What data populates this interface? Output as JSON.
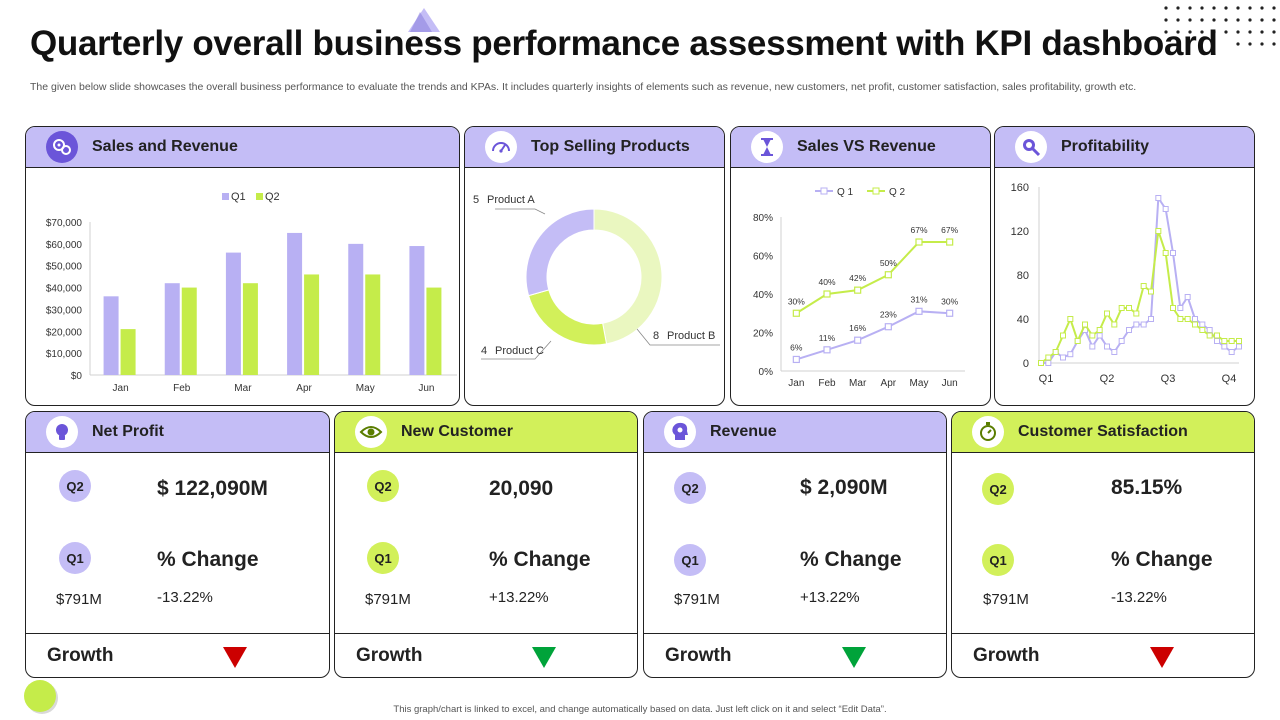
{
  "page": {
    "title": "Quarterly overall business performance assessment with KPI dashboard",
    "subtitle": "The given below slide showcases the overall business performance to evaluate the trends and KPAs.  It includes quarterly insights of elements such as revenue, new customers, net profit, customer satisfaction, sales profitability, growth etc.",
    "footer": "This graph/chart is linked to excel, and change automatically based on data. Just left click on it and select “Edit Data”."
  },
  "colors": {
    "purple": "#c4bdf6",
    "purple_series": "#b8b0f3",
    "green": "#d2f05a",
    "green_series": "#c5ec4a",
    "down": "#cc0000",
    "up": "#00a33a"
  },
  "panels": {
    "sales_revenue": {
      "title": "Sales and Revenue",
      "icon": "chart-gears-icon"
    },
    "top_selling": {
      "title": "Top Selling Products",
      "icon": "gauge-icon"
    },
    "sales_vs_revenue": {
      "title": "Sales VS Revenue",
      "icon": "hourglass-icon"
    },
    "profitability": {
      "title": "Profitability",
      "icon": "magnifier-icon"
    }
  },
  "kpis": [
    {
      "title": "Net Profit",
      "theme": "purple",
      "icon": "lightbulb-icon",
      "q2_label": "Q2",
      "q1_label": "Q1",
      "value": "$ 122,090M",
      "change_label": "% Change",
      "q1_value": "$791M",
      "pct": "-13.22%",
      "growth_label": "Growth",
      "trend": "down"
    },
    {
      "title": "New Customer",
      "theme": "green",
      "icon": "eye-icon",
      "q2_label": "Q2",
      "q1_label": "Q1",
      "value": "20,090",
      "change_label": "% Change",
      "q1_value": "$791M",
      "pct": "+13.22%",
      "growth_label": "Growth",
      "trend": "up"
    },
    {
      "title": "Revenue",
      "theme": "purple",
      "icon": "head-gear-icon",
      "q2_label": "Q2",
      "q1_label": "Q1",
      "value": "$ 2,090M",
      "change_label": "% Change",
      "q1_value": "$791M",
      "pct": "+13.22%",
      "growth_label": "Growth",
      "trend": "up"
    },
    {
      "title": "Customer Satisfaction",
      "theme": "green",
      "icon": "stopwatch-icon",
      "q2_label": "Q2",
      "q1_label": "Q1",
      "value": "85.15%",
      "change_label": "% Change",
      "q1_value": "$791M",
      "pct": "-13.22%",
      "growth_label": "Growth",
      "trend": "down"
    }
  ],
  "chart_data": [
    {
      "id": "sales_revenue",
      "type": "bar",
      "categories": [
        "Jan",
        "Feb",
        "Mar",
        "Apr",
        "May",
        "Jun"
      ],
      "series": [
        {
          "name": "Q1",
          "values": [
            36000,
            42000,
            56000,
            65000,
            60000,
            59000
          ]
        },
        {
          "name": "Q2",
          "values": [
            21000,
            40000,
            42000,
            46000,
            46000,
            40000
          ]
        }
      ],
      "yticks": [
        "$0",
        "$10,000",
        "$20,000",
        "$30,000",
        "$40,000",
        "$50,000",
        "$60,000",
        "$70,000"
      ],
      "ylim": [
        0,
        70000
      ],
      "legend": "top",
      "grid": false
    },
    {
      "id": "top_selling",
      "type": "pie",
      "donut": true,
      "slices": [
        {
          "label": "Product A",
          "value": 5,
          "display": "5"
        },
        {
          "label": "Product B",
          "value": 8,
          "display": "8"
        },
        {
          "label": "Product C",
          "value": 4,
          "display": "4"
        }
      ]
    },
    {
      "id": "sales_vs_revenue",
      "type": "line",
      "categories": [
        "Jan",
        "Feb",
        "Mar",
        "Apr",
        "May",
        "Jun"
      ],
      "series": [
        {
          "name": "Q 1",
          "values": [
            6,
            11,
            16,
            23,
            31,
            30
          ],
          "labels": [
            "6%",
            "11%",
            "16%",
            "23%",
            "31%",
            "30%"
          ]
        },
        {
          "name": "Q 2",
          "values": [
            30,
            40,
            42,
            50,
            67,
            67
          ],
          "labels": [
            "30%",
            "40%",
            "42%",
            "50%",
            "67%",
            "67%"
          ]
        }
      ],
      "yticks": [
        "0%",
        "20%",
        "40%",
        "60%",
        "80%"
      ],
      "ylim": [
        0,
        80
      ],
      "legend": "top",
      "grid": false
    },
    {
      "id": "profitability",
      "type": "line",
      "xticks": [
        "Q1",
        "Q2",
        "Q3",
        "Q4"
      ],
      "series": [
        {
          "name": "",
          "values": [
            0,
            0,
            10,
            5,
            8,
            20,
            30,
            15,
            25,
            15,
            10,
            20,
            30,
            35,
            35,
            40,
            150,
            140,
            100,
            50,
            60,
            40,
            35,
            30,
            20,
            15,
            10,
            15
          ]
        },
        {
          "name": "",
          "values": [
            0,
            5,
            10,
            25,
            40,
            20,
            35,
            25,
            30,
            45,
            35,
            50,
            50,
            45,
            70,
            65,
            120,
            100,
            50,
            40,
            40,
            35,
            30,
            25,
            25,
            20,
            20,
            20
          ]
        }
      ],
      "yticks": [
        "0",
        "40",
        "80",
        "120",
        "160"
      ],
      "ylim": [
        0,
        160
      ],
      "grid": false
    }
  ]
}
